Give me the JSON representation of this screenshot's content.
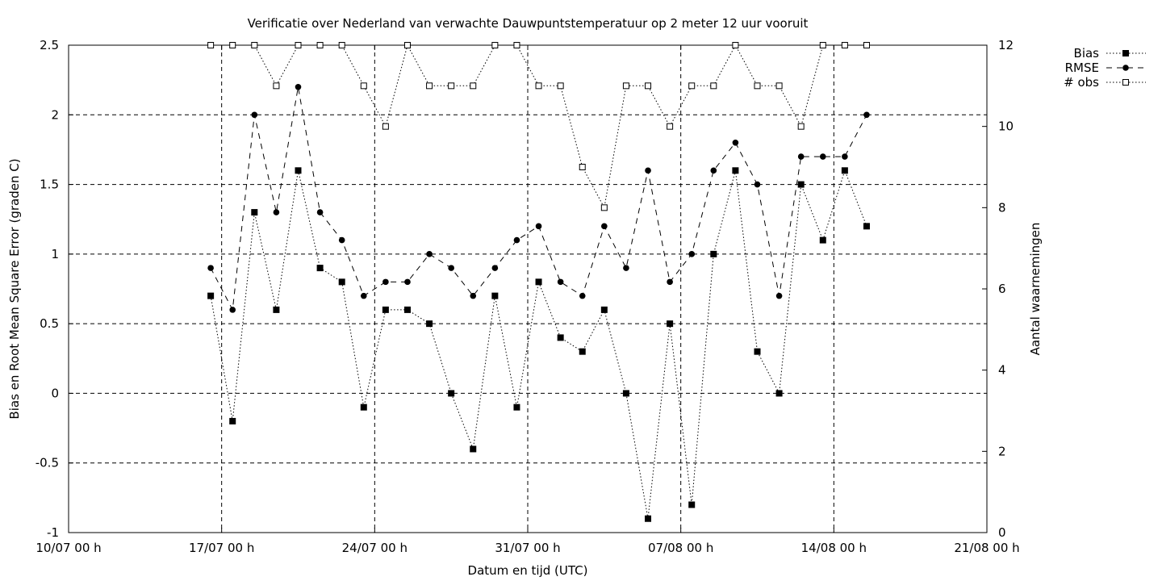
{
  "chart_data": {
    "type": "line",
    "title": "Verificatie over Nederland van verwachte Dauwpuntstemperatuur op 2 meter 12 uur vooruit",
    "xlabel": "Datum en tijd (UTC)",
    "ylabel": "Bias en Root Mean Square Error (graden C)",
    "y2label": "Aantal waarnemingen",
    "x_ticks": [
      "10/07 00 h",
      "17/07 00 h",
      "24/07 00 h",
      "31/07 00 h",
      "07/08 00 h",
      "14/08 00 h",
      "21/08 00 h"
    ],
    "y_ticks": [
      "-1",
      "-0.5",
      "0",
      "0.5",
      "1",
      "1.5",
      "2",
      "2.5"
    ],
    "y2_ticks": [
      "0",
      "2",
      "4",
      "6",
      "8",
      "10",
      "12"
    ],
    "xlim": [
      "10/07 00 h",
      "21/08 00 h"
    ],
    "ylim": [
      -1,
      2.5
    ],
    "y2lim": [
      0,
      12
    ],
    "grid": true,
    "legend_position": "top-right outside",
    "x": [
      "16/07 12 h",
      "17/07 12 h",
      "18/07 12 h",
      "19/07 12 h",
      "20/07 12 h",
      "21/07 12 h",
      "22/07 12 h",
      "23/07 12 h",
      "24/07 12 h",
      "25/07 12 h",
      "26/07 12 h",
      "27/07 12 h",
      "28/07 12 h",
      "29/07 12 h",
      "30/07 12 h",
      "31/07 12 h",
      "01/08 12 h",
      "02/08 12 h",
      "03/08 12 h",
      "04/08 12 h",
      "05/08 12 h",
      "06/08 12 h",
      "07/08 12 h",
      "08/08 12 h",
      "09/08 12 h",
      "10/08 12 h",
      "11/08 12 h",
      "12/08 12 h",
      "13/08 12 h",
      "14/08 12 h",
      "15/08 12 h"
    ],
    "series": [
      {
        "name": "Bias",
        "axis": "left",
        "marker": "filled-square",
        "line": "dotted",
        "values": [
          0.7,
          -0.2,
          1.3,
          0.6,
          1.6,
          0.9,
          0.8,
          -0.1,
          0.6,
          0.6,
          0.5,
          0.0,
          -0.4,
          0.7,
          -0.1,
          0.8,
          0.4,
          0.3,
          0.6,
          0.0,
          -0.9,
          0.5,
          -0.8,
          1.0,
          1.6,
          0.3,
          0.0,
          1.5,
          1.1,
          1.6,
          1.2
        ]
      },
      {
        "name": "RMSE",
        "axis": "left",
        "marker": "filled-circle",
        "line": "dashed",
        "values": [
          0.9,
          0.6,
          2.0,
          1.3,
          2.2,
          1.3,
          1.1,
          0.7,
          0.8,
          0.8,
          1.0,
          0.9,
          0.7,
          0.9,
          1.1,
          1.2,
          0.8,
          0.7,
          1.2,
          0.9,
          1.6,
          0.8,
          1.0,
          1.6,
          1.8,
          1.5,
          0.7,
          1.7,
          1.7,
          1.7,
          2.0
        ]
      },
      {
        "name": "# obs",
        "axis": "right",
        "marker": "open-square",
        "line": "dotted",
        "values": [
          12,
          12,
          12,
          11,
          12,
          12,
          12,
          11,
          10,
          12,
          11,
          11,
          11,
          12,
          12,
          11,
          11,
          9,
          8,
          11,
          11,
          10,
          11,
          11,
          12,
          11,
          11,
          10,
          12,
          12,
          12
        ]
      }
    ]
  }
}
